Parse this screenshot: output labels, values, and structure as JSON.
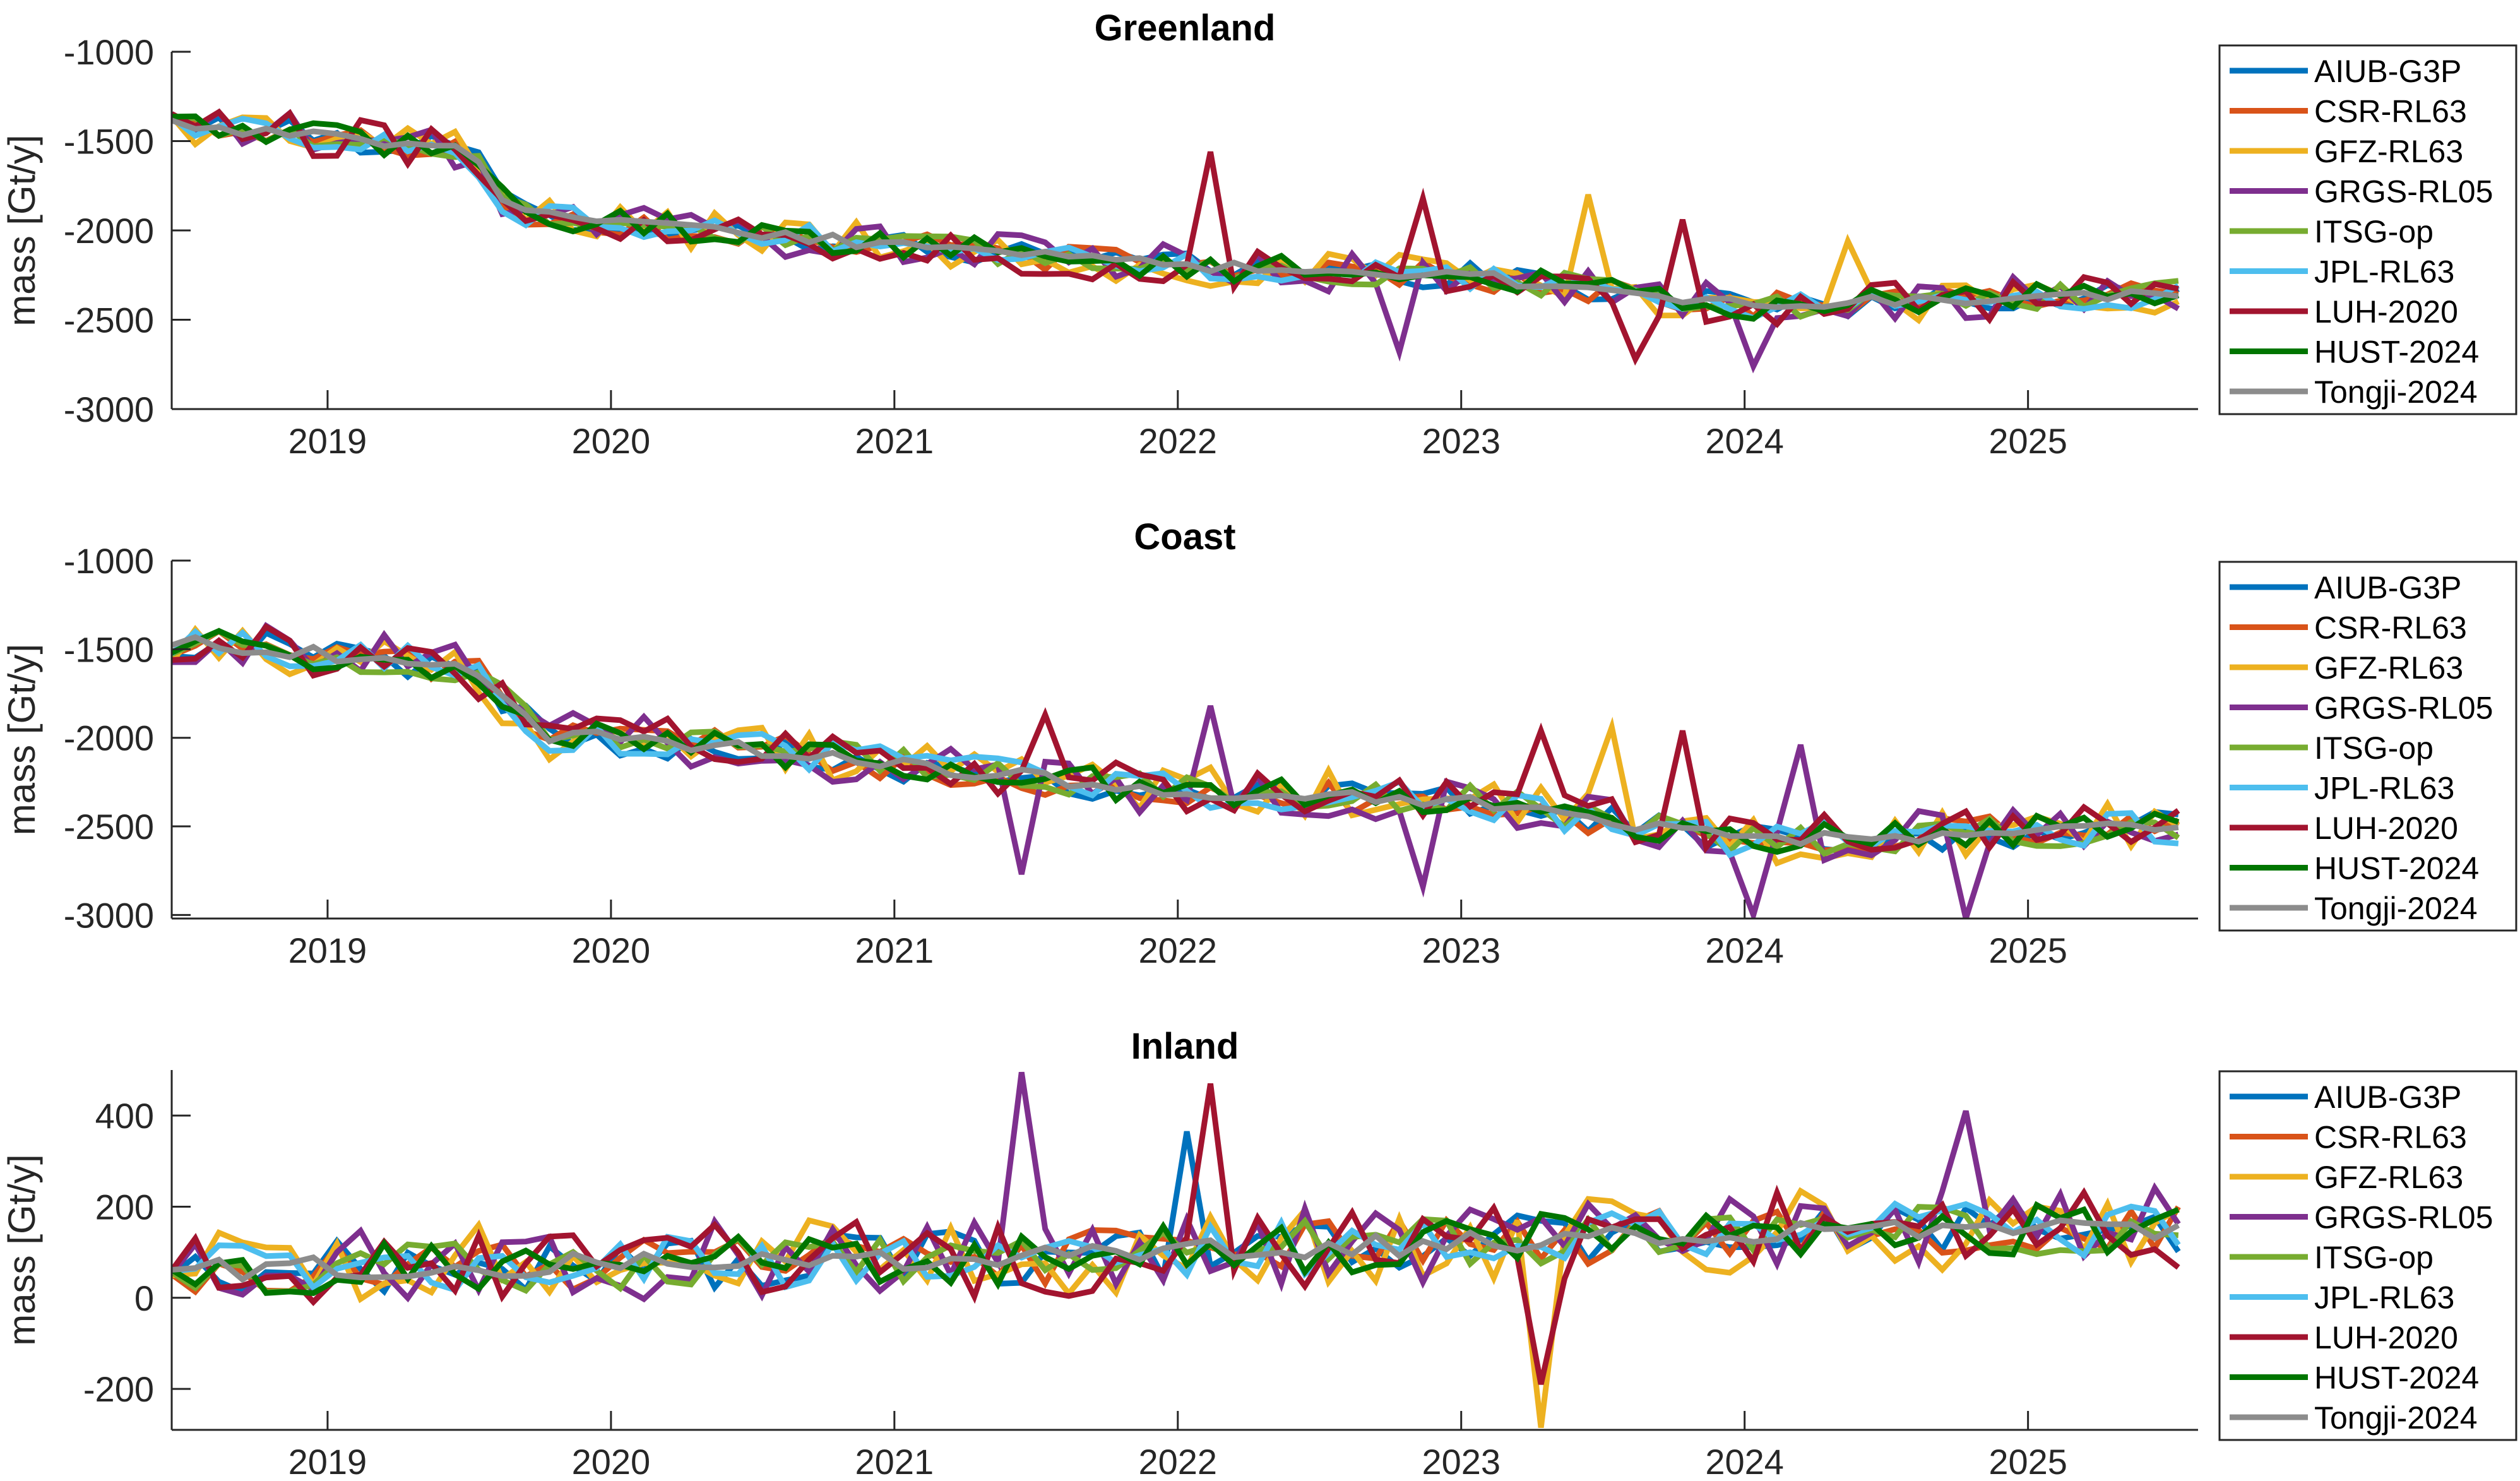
{
  "chart_data": [
    {
      "type": "line",
      "title": "Greenland",
      "xlabel": "",
      "ylabel": "mass [Gt/y]",
      "xlim": [
        2018.45,
        2025.6
      ],
      "ylim": [
        -3000,
        -1000
      ],
      "xticks": [
        2019,
        2020,
        2021,
        2022,
        2023,
        2024,
        2025
      ],
      "yticks": [
        -3000,
        -2500,
        -2000,
        -1500,
        -1000
      ],
      "grid": false,
      "legend_placement": "outside-right",
      "trend": {
        "start": [
          2018.45,
          -1400
        ],
        "knots": [
          [
            2019.5,
            -1550
          ],
          [
            2019.65,
            -1900
          ],
          [
            2020.5,
            -2020
          ],
          [
            2021.0,
            -2080
          ],
          [
            2022.0,
            -2200
          ],
          [
            2023.0,
            -2250
          ],
          [
            2024.0,
            -2420
          ],
          [
            2025.6,
            -2350
          ]
        ]
      },
      "noise_amplitude": 90,
      "spikes": {
        "LUH-2020": [
          [
            2022.08,
            -1560
          ],
          [
            2022.85,
            -1820
          ],
          [
            2023.6,
            -2720
          ],
          [
            2023.75,
            -1940
          ]
        ],
        "GRGS-RL05": [
          [
            2022.8,
            -2680
          ],
          [
            2024.0,
            -2760
          ]
        ],
        "GFZ-RL63": [
          [
            2023.45,
            -1800
          ],
          [
            2024.35,
            -2060
          ]
        ]
      }
    },
    {
      "type": "line",
      "title": "Coast",
      "xlabel": "",
      "ylabel": "mass [Gt/y]",
      "xlim": [
        2018.45,
        2025.6
      ],
      "ylim": [
        -3020,
        -1000
      ],
      "xticks": [
        2019,
        2020,
        2021,
        2022,
        2023,
        2024,
        2025
      ],
      "yticks": [
        -3000,
        -2500,
        -2000,
        -1500,
        -1000
      ],
      "grid": false,
      "legend_placement": "outside-right",
      "trend": {
        "start": [
          2018.45,
          -1450
        ],
        "knots": [
          [
            2019.5,
            -1600
          ],
          [
            2019.75,
            -1980
          ],
          [
            2020.5,
            -2060
          ],
          [
            2021.0,
            -2150
          ],
          [
            2022.0,
            -2300
          ],
          [
            2023.0,
            -2350
          ],
          [
            2024.0,
            -2580
          ],
          [
            2025.6,
            -2500
          ]
        ]
      },
      "noise_amplitude": 110,
      "spikes": {
        "GRGS-RL05": [
          [
            2021.45,
            -2770
          ],
          [
            2022.15,
            -1820
          ],
          [
            2022.85,
            -2840
          ],
          [
            2024.05,
            -3000
          ],
          [
            2024.2,
            -2040
          ],
          [
            2024.75,
            -3020
          ]
        ],
        "LUH-2020": [
          [
            2021.5,
            -1870
          ],
          [
            2023.25,
            -1960
          ],
          [
            2023.8,
            -1960
          ]
        ],
        "GFZ-RL63": [
          [
            2023.5,
            -1940
          ]
        ]
      }
    },
    {
      "type": "line",
      "title": "Inland",
      "xlabel": "",
      "ylabel": "mass [Gt/y]",
      "xlim": [
        2018.45,
        2025.6
      ],
      "ylim": [
        -290,
        500
      ],
      "xticks": [
        2019,
        2020,
        2021,
        2022,
        2023,
        2024,
        2025
      ],
      "yticks": [
        -200,
        0,
        200,
        400
      ],
      "grid": false,
      "legend_placement": "outside-right",
      "trend": {
        "start": [
          2018.45,
          60
        ],
        "knots": [
          [
            2019.5,
            70
          ],
          [
            2020.5,
            80
          ],
          [
            2021.5,
            90
          ],
          [
            2022.5,
            110
          ],
          [
            2023.5,
            130
          ],
          [
            2024.5,
            150
          ],
          [
            2025.6,
            150
          ]
        ]
      },
      "noise_amplitude": 70,
      "spikes": {
        "GRGS-RL05": [
          [
            2021.45,
            495
          ],
          [
            2024.75,
            410
          ]
        ],
        "LUH-2020": [
          [
            2022.1,
            470
          ],
          [
            2023.25,
            -190
          ]
        ],
        "AIUB-G3P": [
          [
            2022.05,
            365
          ]
        ],
        "GFZ-RL63": [
          [
            2023.3,
            -285
          ]
        ]
      }
    }
  ],
  "series": [
    {
      "name": "AIUB-G3P",
      "color": "#0072bd"
    },
    {
      "name": "CSR-RL63",
      "color": "#d95319"
    },
    {
      "name": "GFZ-RL63",
      "color": "#edb120"
    },
    {
      "name": "GRGS-RL05",
      "color": "#7e2f8e"
    },
    {
      "name": "ITSG-op",
      "color": "#77ac30"
    },
    {
      "name": "JPL-RL63",
      "color": "#4dbeee"
    },
    {
      "name": "LUH-2020",
      "color": "#a2142f"
    },
    {
      "name": "HUST-2024",
      "color": "#007500"
    },
    {
      "name": "Tongji-2024",
      "color": "#8c8c8c"
    }
  ],
  "sampling": {
    "start": 2018.45,
    "end": 2025.55,
    "step_years": 0.0833
  }
}
